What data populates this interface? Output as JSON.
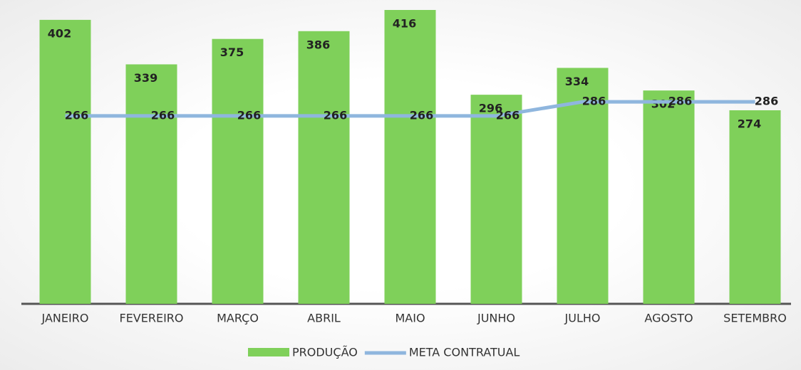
{
  "chart_data": {
    "type": "bar-line",
    "categories": [
      "JANEIRO",
      "FEVEREIRO",
      "MARÇO",
      "ABRIL",
      "MAIO",
      "JUNHO",
      "JULHO",
      "AGOSTO",
      "SETEMBRO"
    ],
    "series": [
      {
        "name": "PRODUÇÃO",
        "type": "bar",
        "color": "#7fd05a",
        "values": [
          402,
          339,
          375,
          386,
          416,
          296,
          334,
          302,
          274
        ]
      },
      {
        "name": "META CONTRATUAL",
        "type": "line",
        "color": "#8fb6de",
        "values": [
          266,
          266,
          266,
          266,
          266,
          266,
          286,
          286,
          286
        ]
      }
    ],
    "legend": "bottom"
  }
}
